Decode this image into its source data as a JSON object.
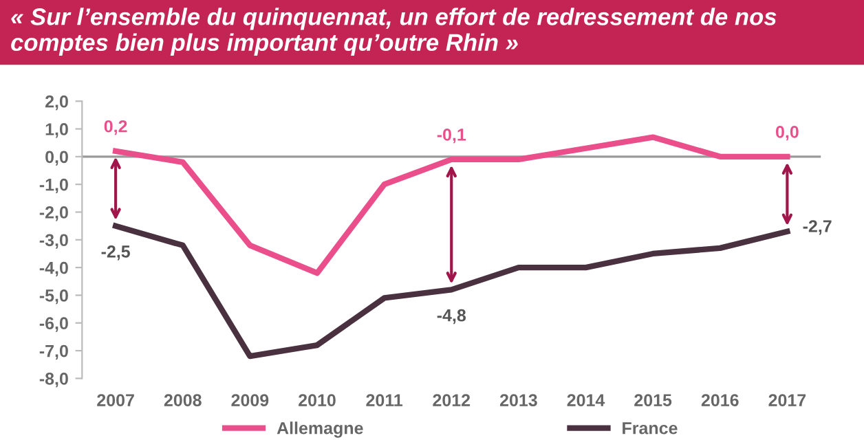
{
  "chart_data": {
    "type": "line",
    "title": "« Sur l’ensemble du quinquennat, un effort de redressement de nos comptes bien plus important qu’outre Rhin »",
    "categories": [
      "2007",
      "2008",
      "2009",
      "2010",
      "2011",
      "2012",
      "2013",
      "2014",
      "2015",
      "2016",
      "2017"
    ],
    "series": [
      {
        "name": "Allemagne",
        "color": "#ea4f8c",
        "values": [
          0.2,
          -0.2,
          -3.2,
          -4.2,
          -1.0,
          -0.1,
          -0.1,
          0.3,
          0.7,
          0.0,
          0.0
        ],
        "value_labels": [
          "0,2",
          null,
          null,
          null,
          null,
          "-0,1",
          null,
          null,
          null,
          null,
          "0,0"
        ]
      },
      {
        "name": "France",
        "color": "#4a3140",
        "values": [
          -2.5,
          -3.2,
          -7.2,
          -6.8,
          -5.1,
          -4.8,
          -4.0,
          -4.0,
          -3.5,
          -3.3,
          -2.7
        ],
        "value_labels": [
          "-2,5",
          null,
          null,
          null,
          null,
          "-4,8",
          null,
          null,
          null,
          null,
          "-2,7"
        ]
      }
    ],
    "ylim": [
      -8.0,
      2.0
    ],
    "yticks": [
      {
        "value": 2,
        "label": "2,0"
      },
      {
        "value": 1,
        "label": "1,0"
      },
      {
        "value": 0,
        "label": "0,0"
      },
      {
        "value": -1,
        "label": "-1,0"
      },
      {
        "value": -2,
        "label": "-2,0"
      },
      {
        "value": -3,
        "label": "-3,0"
      },
      {
        "value": -4,
        "label": "-4,0"
      },
      {
        "value": -5,
        "label": "-5,0"
      },
      {
        "value": -6,
        "label": "-6,0"
      },
      {
        "value": -7,
        "label": "-7,0"
      },
      {
        "value": -8,
        "label": "-8,0"
      }
    ],
    "ref_lines": [
      {
        "axis": "y",
        "value": 0,
        "color": "#999999",
        "line_style": "solid"
      }
    ],
    "grid": false,
    "legend": "bottom",
    "marker": "none",
    "line_style": "solid"
  }
}
